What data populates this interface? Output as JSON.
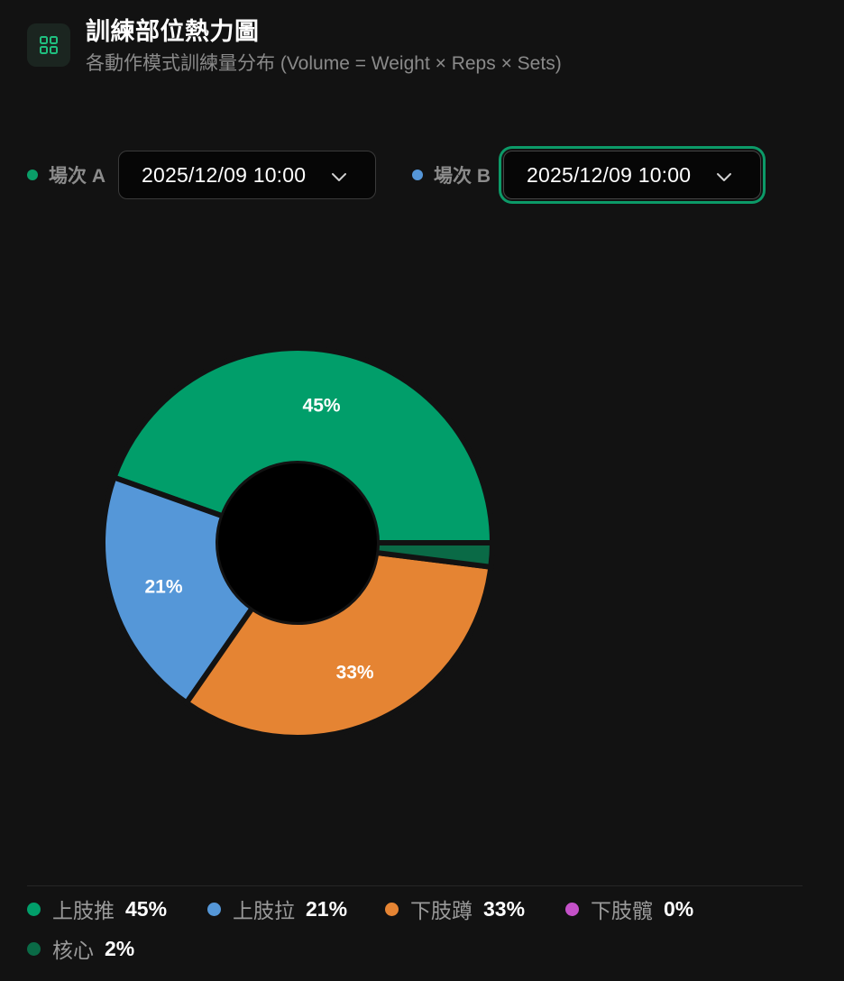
{
  "header": {
    "icon": "grid-icon",
    "title": "訓練部位熱力圖",
    "subtitle": "各動作模式訓練量分布 (Volume = Weight × Reps × Sets)"
  },
  "sessions": {
    "a": {
      "label": "場次 A",
      "value": "2025/12/09 10:00",
      "dot_color": "#0a9e68"
    },
    "b": {
      "label": "場次 B",
      "value": "2025/12/09 10:00",
      "dot_color": "#5596d8"
    }
  },
  "chart_data": {
    "type": "pie",
    "variant": "donut",
    "categories": [
      "上肢推",
      "上肢拉",
      "下肢蹲",
      "下肢髖",
      "核心"
    ],
    "values": [
      45,
      21,
      33,
      0,
      2
    ],
    "labels": [
      "45%",
      "21%",
      "33%",
      "0%",
      "2%"
    ],
    "colors": [
      "#019e6a",
      "#5597d8",
      "#e58433",
      "#c451c8",
      "#0a6a46"
    ],
    "slice_labels_shown": [
      "45%",
      "21%",
      "33%"
    ],
    "legend_position": "bottom"
  },
  "legend": [
    {
      "label": "上肢推",
      "value": "45%",
      "color": "#019e6a"
    },
    {
      "label": "上肢拉",
      "value": "21%",
      "color": "#5597d8"
    },
    {
      "label": "下肢蹲",
      "value": "33%",
      "color": "#e58433"
    },
    {
      "label": "下肢髖",
      "value": "0%",
      "color": "#c451c8"
    },
    {
      "label": "核心",
      "value": "2%",
      "color": "#0a6a46"
    }
  ]
}
